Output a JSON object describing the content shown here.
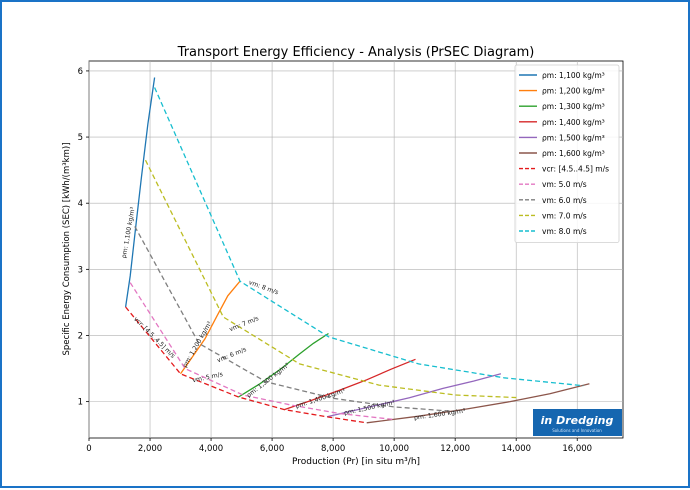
{
  "chart_data": {
    "type": "line",
    "title": "Transport Energy Efficiency - Analysis (PrSEC Diagram)",
    "xlabel": "Production (Pr) [in situ m³/h]",
    "ylabel": "Specific Energy Consumption (SEC) [kWh/(m³km)]",
    "xlim": [
      0,
      17500
    ],
    "ylim": [
      0.45,
      6.15
    ],
    "xticks": [
      0,
      2000,
      4000,
      6000,
      8000,
      10000,
      12000,
      14000,
      16000
    ],
    "xtick_labels": [
      "0",
      "2,000",
      "4,000",
      "6,000",
      "8,000",
      "10,000",
      "12,000",
      "14,000",
      "16,000"
    ],
    "yticks": [
      1,
      2,
      3,
      4,
      5,
      6
    ],
    "ytick_labels": [
      "1",
      "2",
      "3",
      "4",
      "5",
      "6"
    ],
    "density_series": [
      {
        "name": "1,100",
        "color": "#1f77b4",
        "points": [
          [
            1200,
            2.43
          ],
          [
            1350,
            2.9
          ],
          [
            1520,
            3.6
          ],
          [
            1720,
            4.4
          ],
          [
            1930,
            5.2
          ],
          [
            2150,
            5.9
          ]
        ],
        "label": "ρm: 1,100 kg/m³",
        "label_at": [
          1350,
          3.55
        ],
        "label_rot": -80
      },
      {
        "name": "1,200",
        "color": "#ff7f0e",
        "points": [
          [
            3000,
            1.42
          ],
          [
            3350,
            1.65
          ],
          [
            3800,
            1.95
          ],
          [
            4200,
            2.3
          ],
          [
            4550,
            2.6
          ],
          [
            4950,
            2.82
          ]
        ],
        "label": "ρm: 1,200 kg/m³",
        "label_at": [
          3600,
          1.85
        ],
        "label_rot": -60
      },
      {
        "name": "1,300",
        "color": "#2ca02c",
        "points": [
          [
            4900,
            1.07
          ],
          [
            5600,
            1.27
          ],
          [
            6300,
            1.5
          ],
          [
            6900,
            1.72
          ],
          [
            7350,
            1.88
          ],
          [
            7850,
            2.03
          ]
        ],
        "label": "ρm: 1,300 kg/m³",
        "label_at": [
          5900,
          1.3
        ],
        "label_rot": -38
      },
      {
        "name": "1,400",
        "color": "#d62728",
        "points": [
          [
            6400,
            0.88
          ],
          [
            7300,
            1.02
          ],
          [
            8200,
            1.17
          ],
          [
            9100,
            1.33
          ],
          [
            9900,
            1.49
          ],
          [
            10700,
            1.64
          ]
        ],
        "label": "ρm: 1,400 kg/m³",
        "label_at": [
          7600,
          1.02
        ],
        "label_rot": -18
      },
      {
        "name": "1,500",
        "color": "#9467bd",
        "points": [
          [
            7800,
            0.77
          ],
          [
            9200,
            0.92
          ],
          [
            10500,
            1.06
          ],
          [
            11600,
            1.2
          ],
          [
            12600,
            1.31
          ],
          [
            13500,
            1.42
          ]
        ],
        "label": "ρm: 1,500 kg/m³",
        "label_at": [
          9200,
          0.88
        ],
        "label_rot": -12
      },
      {
        "name": "1,600",
        "color": "#8c564b",
        "points": [
          [
            9100,
            0.68
          ],
          [
            10800,
            0.78
          ],
          [
            12400,
            0.89
          ],
          [
            13800,
            1.0
          ],
          [
            15100,
            1.12
          ],
          [
            16400,
            1.27
          ]
        ],
        "label": "ρm: 1,600 kg/m³",
        "label_at": [
          11500,
          0.78
        ],
        "label_rot": -8
      },
      {
        "name": "vcr",
        "color": "#e41a1c",
        "points": [
          [
            1200,
            2.43
          ],
          [
            3000,
            1.42
          ],
          [
            4900,
            1.07
          ],
          [
            6400,
            0.88
          ],
          [
            7800,
            0.77
          ],
          [
            9100,
            0.68
          ]
        ],
        "label": "vcr: [4.5..4.5] m/s",
        "label_at": [
          2100,
          1.95
        ],
        "label_rot": 45
      }
    ],
    "velocity_series": [
      {
        "name": "5.0 m/s",
        "color": "#e377c2",
        "points": [
          [
            1350,
            2.8
          ],
          [
            3150,
            1.5
          ],
          [
            5050,
            1.1
          ],
          [
            6600,
            0.95
          ],
          [
            8200,
            0.82
          ],
          [
            10000,
            0.73
          ]
        ],
        "label": "vm: 5 m/s",
        "label_at": [
          3900,
          1.34
        ],
        "label_rot": -12
      },
      {
        "name": "6.0 m/s",
        "color": "#7f7f7f",
        "points": [
          [
            1500,
            3.65
          ],
          [
            3600,
            1.88
          ],
          [
            5800,
            1.3
          ],
          [
            8000,
            1.05
          ],
          [
            10000,
            0.92
          ],
          [
            12000,
            0.85
          ]
        ],
        "label": "vm: 6 m/s",
        "label_at": [
          4700,
          1.68
        ],
        "label_rot": -22
      },
      {
        "name": "7.0 m/s",
        "color": "#bcbd22",
        "points": [
          [
            1850,
            4.65
          ],
          [
            4400,
            2.28
          ],
          [
            6900,
            1.57
          ],
          [
            9500,
            1.25
          ],
          [
            12000,
            1.1
          ],
          [
            14100,
            1.06
          ]
        ],
        "label": "vm: 7 m/s",
        "label_at": [
          5100,
          2.15
        ],
        "label_rot": -22
      },
      {
        "name": "8.0 m/s",
        "color": "#17becf",
        "points": [
          [
            2150,
            5.75
          ],
          [
            4950,
            2.82
          ],
          [
            7850,
            1.98
          ],
          [
            10800,
            1.57
          ],
          [
            13600,
            1.36
          ],
          [
            16200,
            1.24
          ]
        ],
        "label": "vm: 8 m/s",
        "label_at": [
          5700,
          2.7
        ],
        "label_rot": 20
      }
    ],
    "legend": {
      "position": "top-right",
      "entries": [
        {
          "label": "ρm: 1,100 kg/m³",
          "color": "#1f77b4",
          "style": "solid"
        },
        {
          "label": "ρm: 1,200 kg/m³",
          "color": "#ff7f0e",
          "style": "solid"
        },
        {
          "label": "ρm: 1,300 kg/m³",
          "color": "#2ca02c",
          "style": "solid"
        },
        {
          "label": "ρm: 1,400 kg/m³",
          "color": "#d62728",
          "style": "solid"
        },
        {
          "label": "ρm: 1,500 kg/m³",
          "color": "#9467bd",
          "style": "solid"
        },
        {
          "label": "ρm: 1,600 kg/m³",
          "color": "#8c564b",
          "style": "solid"
        },
        {
          "label": "vcr: [4.5..4.5] m/s",
          "color": "#e41a1c",
          "style": "dashed"
        },
        {
          "label": "vm: 5.0 m/s",
          "color": "#e377c2",
          "style": "dashed"
        },
        {
          "label": "vm: 6.0 m/s",
          "color": "#7f7f7f",
          "style": "dashed"
        },
        {
          "label": "vm: 7.0 m/s",
          "color": "#bcbd22",
          "style": "dashed"
        },
        {
          "label": "vm: 8.0 m/s",
          "color": "#17becf",
          "style": "dashed"
        }
      ]
    },
    "grid": true
  },
  "logo": {
    "name": "in Dredging",
    "tagline": "Solutions and Innovation",
    "bg_color": "#1566b0"
  }
}
